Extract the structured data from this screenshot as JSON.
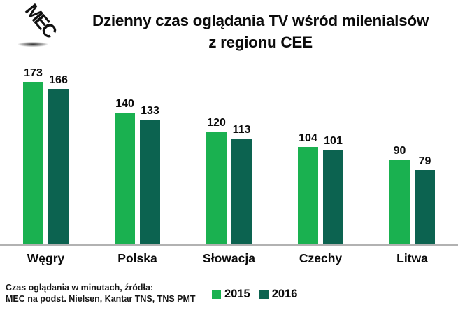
{
  "header": {
    "logo_text": "MEC",
    "title_line1": "Dzienny czas oglądania TV wśród milenialsów",
    "title_line2": "z regionu CEE"
  },
  "chart_data": {
    "type": "bar",
    "title": "Dzienny czas oglądania TV wśród milenialsów z regionu CEE",
    "categories": [
      "Węgry",
      "Polska",
      "Słowacja",
      "Czechy",
      "Litwa"
    ],
    "series": [
      {
        "name": "2015",
        "color": "#1ab150",
        "values": [
          173,
          140,
          120,
          104,
          90
        ]
      },
      {
        "name": "2016",
        "color": "#0c6350",
        "values": [
          166,
          133,
          113,
          101,
          79
        ]
      }
    ],
    "value_labels": true,
    "unit_note": "Czas oglądania w minutach",
    "grid": false,
    "axes_shown": false,
    "legend_position": "bottom-center",
    "ylim": [
      0,
      190
    ]
  },
  "footer": {
    "source_line1": "Czas oglądania w minutach, źródła:",
    "source_line2": "MEC na podst. Nielsen, Kantar TNS, TNS PMT"
  }
}
